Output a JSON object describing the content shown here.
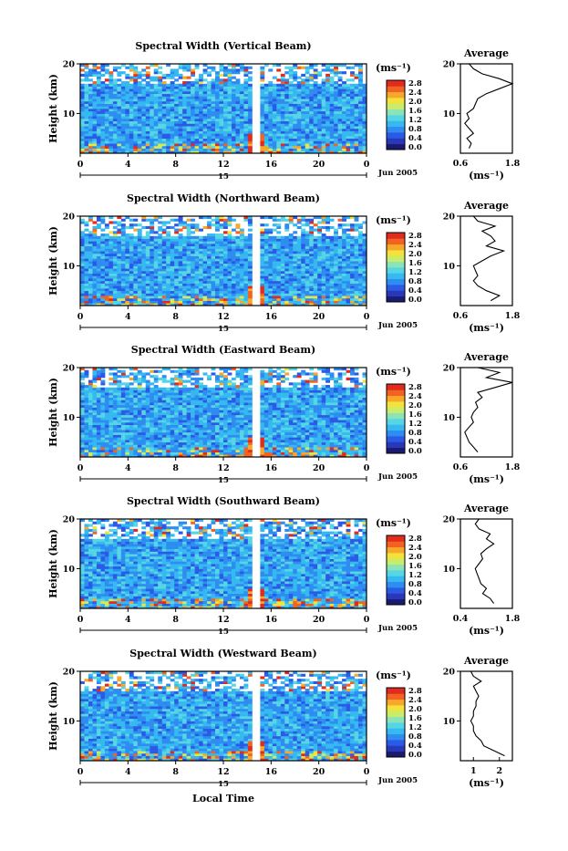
{
  "figure": {
    "xlabel": "Local Time",
    "date_label": "Jun 2005",
    "colorbar_unit": "(ms⁻¹)",
    "colorbar_ticks": [
      "0.0",
      "0.4",
      "0.8",
      "1.2",
      "1.6",
      "2.0",
      "2.4",
      "2.8"
    ],
    "colorbar_colors": [
      "#1a1a70",
      "#2838b8",
      "#2b5be6",
      "#2f8cf0",
      "#35b9f0",
      "#56d6e4",
      "#8be3b8",
      "#c9ec6a",
      "#f4e23c",
      "#f7a82a",
      "#f26322",
      "#e02b1e"
    ],
    "avg_xlabel": "(ms⁻¹)"
  },
  "chart_data": [
    {
      "type": "heatmap",
      "title": "Spectral Width (Vertical Beam)",
      "ylabel": "Height (km)",
      "xlabel": "Local Time",
      "x_ticks": [
        "0",
        "4",
        "8",
        "12",
        "16",
        "20",
        "0"
      ],
      "date_tick": "15",
      "y_ticks": [
        "10",
        "20"
      ],
      "xlim": [
        0,
        24
      ],
      "ylim": [
        2,
        20
      ],
      "colorbar_range": [
        0.0,
        2.8
      ],
      "gap_hour": 14.8,
      "average": {
        "title": "Average",
        "x_ticks": [
          "0.6",
          "1.8"
        ],
        "xlim": [
          0.6,
          1.8
        ],
        "y_ticks": [
          "10",
          "20"
        ],
        "heights_km": [
          3,
          4,
          5,
          6,
          7,
          8,
          9,
          10,
          11,
          12,
          13,
          14,
          15,
          16,
          17,
          18,
          19,
          20
        ],
        "values": [
          0.8,
          0.85,
          0.75,
          0.9,
          0.8,
          0.7,
          0.8,
          0.75,
          0.9,
          0.95,
          1.0,
          1.2,
          1.5,
          1.8,
          1.5,
          1.1,
          0.9,
          0.8
        ]
      }
    },
    {
      "type": "heatmap",
      "title": "Spectral Width (Northward Beam)",
      "ylabel": "Height (km)",
      "xlabel": "Local Time",
      "x_ticks": [
        "0",
        "4",
        "8",
        "12",
        "16",
        "20",
        "0"
      ],
      "date_tick": "15",
      "y_ticks": [
        "10",
        "20"
      ],
      "xlim": [
        0,
        24
      ],
      "ylim": [
        2,
        20
      ],
      "colorbar_range": [
        0.0,
        2.8
      ],
      "gap_hour": 14.8,
      "average": {
        "title": "Average",
        "x_ticks": [
          "0.6",
          "1.8"
        ],
        "xlim": [
          0.6,
          1.8
        ],
        "y_ticks": [
          "10",
          "20"
        ],
        "heights_km": [
          3,
          4,
          5,
          6,
          7,
          8,
          9,
          10,
          11,
          12,
          13,
          14,
          15,
          16,
          17,
          18,
          19,
          20
        ],
        "values": [
          1.3,
          1.5,
          1.2,
          1.0,
          0.9,
          1.0,
          0.95,
          0.9,
          1.1,
          1.3,
          1.6,
          1.2,
          1.4,
          1.3,
          1.1,
          1.4,
          1.0,
          0.9
        ]
      }
    },
    {
      "type": "heatmap",
      "title": "Spectral Width (Eastward Beam)",
      "ylabel": "Height (km)",
      "xlabel": "Local Time",
      "x_ticks": [
        "0",
        "4",
        "8",
        "12",
        "16",
        "20",
        "0"
      ],
      "date_tick": "15",
      "y_ticks": [
        "10",
        "20"
      ],
      "xlim": [
        0,
        24
      ],
      "ylim": [
        2,
        20
      ],
      "colorbar_range": [
        0.0,
        2.8
      ],
      "gap_hour": 14.8,
      "average": {
        "title": "Average",
        "x_ticks": [
          "0.6",
          "1.8"
        ],
        "xlim": [
          0.6,
          1.8
        ],
        "y_ticks": [
          "10",
          "20"
        ],
        "heights_km": [
          3,
          4,
          5,
          6,
          7,
          8,
          9,
          10,
          11,
          12,
          13,
          14,
          15,
          16,
          17,
          18,
          19,
          20
        ],
        "values": [
          1.0,
          0.9,
          0.8,
          0.75,
          0.7,
          0.8,
          0.9,
          0.85,
          0.9,
          1.0,
          0.95,
          1.1,
          1.0,
          1.4,
          1.8,
          1.2,
          1.5,
          1.0
        ]
      }
    },
    {
      "type": "heatmap",
      "title": "Spectral Width (Southward Beam)",
      "ylabel": "Height (km)",
      "xlabel": "Local Time",
      "x_ticks": [
        "0",
        "4",
        "8",
        "12",
        "16",
        "20",
        "0"
      ],
      "date_tick": "15",
      "y_ticks": [
        "10",
        "20"
      ],
      "xlim": [
        0,
        24
      ],
      "ylim": [
        2,
        20
      ],
      "colorbar_range": [
        0.0,
        2.8
      ],
      "gap_hour": 14.8,
      "average": {
        "title": "Average",
        "x_ticks": [
          "0.4",
          "1.8"
        ],
        "xlim": [
          0.4,
          1.8
        ],
        "y_ticks": [
          "10",
          "20"
        ],
        "heights_km": [
          3,
          4,
          5,
          6,
          7,
          8,
          9,
          10,
          11,
          12,
          13,
          14,
          15,
          16,
          17,
          18,
          19,
          20
        ],
        "values": [
          1.3,
          1.2,
          1.0,
          1.1,
          0.95,
          0.9,
          0.85,
          0.8,
          0.9,
          1.0,
          0.95,
          1.1,
          1.3,
          1.1,
          1.2,
          0.9,
          0.8,
          0.9
        ]
      }
    },
    {
      "type": "heatmap",
      "title": "Spectral Width (Westward Beam)",
      "ylabel": "Height (km)",
      "xlabel": "Local Time",
      "x_ticks": [
        "0",
        "4",
        "8",
        "12",
        "16",
        "20",
        "0"
      ],
      "date_tick": "15",
      "y_ticks": [
        "10",
        "20"
      ],
      "xlim": [
        0,
        24
      ],
      "ylim": [
        2,
        20
      ],
      "colorbar_range": [
        0.0,
        2.8
      ],
      "gap_hour": 14.8,
      "average": {
        "title": "Average",
        "x_ticks": [
          "1",
          "2"
        ],
        "xlim": [
          0.5,
          2.5
        ],
        "y_ticks": [
          "10",
          "20"
        ],
        "heights_km": [
          3,
          4,
          5,
          6,
          7,
          8,
          9,
          10,
          11,
          12,
          13,
          14,
          15,
          16,
          17,
          18,
          19,
          20
        ],
        "values": [
          2.2,
          1.8,
          1.4,
          1.3,
          1.1,
          1.0,
          1.0,
          0.9,
          1.0,
          1.0,
          1.1,
          1.1,
          1.2,
          1.1,
          1.0,
          1.3,
          1.0,
          0.9
        ]
      }
    }
  ]
}
